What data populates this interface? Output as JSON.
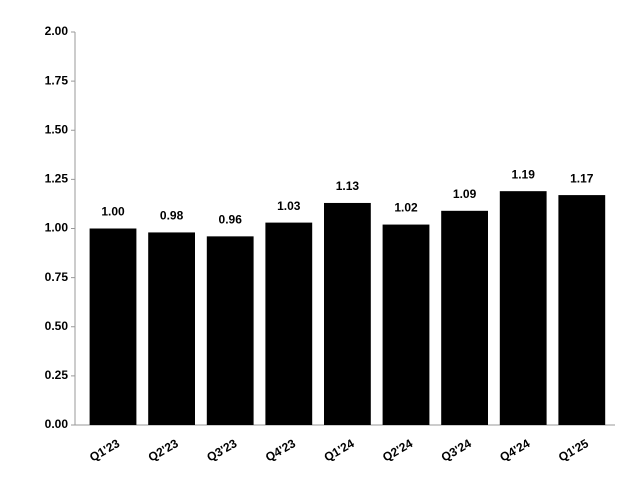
{
  "chart_data": {
    "type": "bar",
    "categories": [
      "Q1'23",
      "Q2'23",
      "Q3'23",
      "Q4'23",
      "Q1'24",
      "Q2'24",
      "Q3'24",
      "Q4'24",
      "Q1'25"
    ],
    "values": [
      1.0,
      0.98,
      0.96,
      1.03,
      1.13,
      1.02,
      1.09,
      1.19,
      1.17
    ],
    "value_labels": [
      "1.00",
      "0.98",
      "0.96",
      "1.03",
      "1.13",
      "1.02",
      "1.09",
      "1.19",
      "1.17"
    ],
    "color": "#000000",
    "ylim": [
      0,
      2
    ],
    "yticks": [
      {
        "value": 0,
        "label": "0.00"
      },
      {
        "value": 0.25,
        "label": "0.25"
      },
      {
        "value": 0.5,
        "label": "0.50"
      },
      {
        "value": 0.75,
        "label": "0.75"
      },
      {
        "value": 1,
        "label": "1.00"
      },
      {
        "value": 1.25,
        "label": "1.25"
      },
      {
        "value": 1.5,
        "label": "1.50"
      },
      {
        "value": 1.75,
        "label": "1.75"
      },
      {
        "value": 2,
        "label": "2.00"
      }
    ],
    "grid": false
  }
}
